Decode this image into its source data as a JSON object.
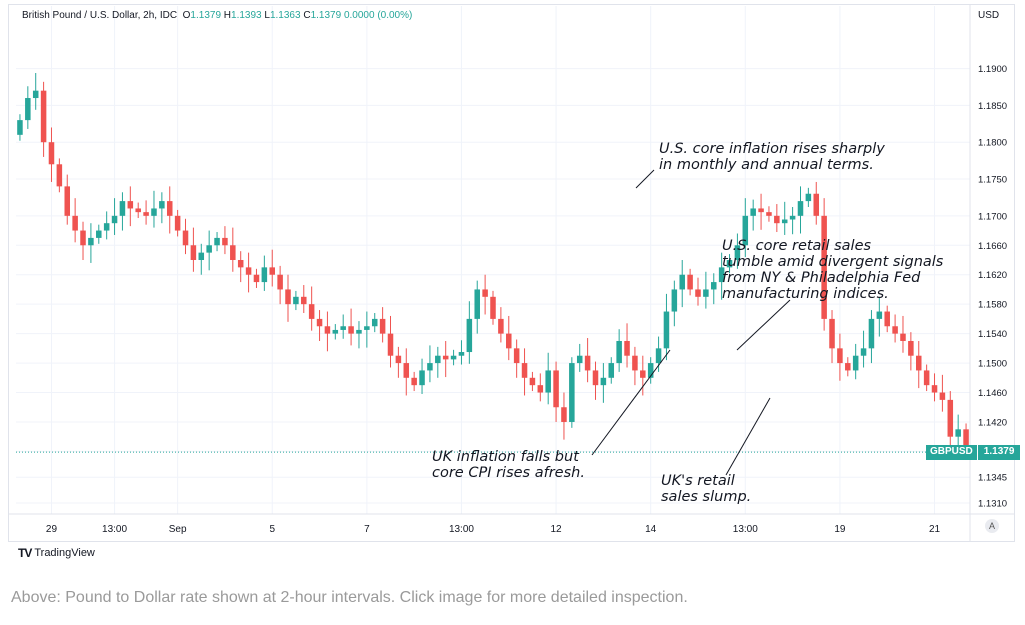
{
  "header": {
    "symbol": "British Pound / U.S. Dollar, 2h, IDC",
    "open_label": "O",
    "open": "1.1379",
    "high_label": "H",
    "high": "1.1393",
    "low_label": "L",
    "low": "1.1363",
    "close_label": "C",
    "close": "1.1379",
    "change": "0.0000 (0.00%)"
  },
  "currency": "USD",
  "price_tag": {
    "symbol": "GBPUSD",
    "value": "1.1379"
  },
  "auto_button": "A",
  "brand": "TradingView",
  "caption": "Above: Pound to Dollar rate shown at 2-hour intervals. Click image for more detailed inspection.",
  "annotations": [
    "U.S. core inflation rises sharply\nin monthly and annual terms.",
    "U.S. core retail sales\ntumble amid divergent signals\nfrom NY & Philadelphia Fed\nmanufacturing indices.",
    "UK inflation falls but\ncore CPI rises afresh.",
    "UK's retail\nsales slump."
  ],
  "colors": {
    "up": "#26a69a",
    "down": "#ef5350",
    "grid": "#f0f3fa",
    "axis_text": "#131722"
  },
  "chart_data": {
    "type": "candlestick",
    "ylim": [
      1.1295,
      1.1985
    ],
    "yticks": [
      1.131,
      1.1345,
      1.138,
      1.142,
      1.146,
      1.15,
      1.154,
      1.158,
      1.162,
      1.166,
      1.17,
      1.175,
      1.18,
      1.185,
      1.19
    ],
    "ytick_labels": [
      "1.1310",
      "1.1345",
      "1.1380",
      "1.1420",
      "1.1460",
      "1.1500",
      "1.1540",
      "1.1580",
      "1.1620",
      "1.1660",
      "1.1700",
      "1.1750",
      "1.1800",
      "1.1850",
      "1.1900"
    ],
    "xticks": [
      4,
      12,
      20,
      32,
      44,
      56,
      68,
      80,
      92,
      104,
      116
    ],
    "xtick_labels": [
      "29",
      "13:00",
      "Sep",
      "5",
      "7",
      "13:00",
      "12",
      "14",
      "13:00",
      "19",
      "21"
    ],
    "x_slots": 121,
    "close_values": [
      1.183,
      1.186,
      1.187,
      1.18,
      1.177,
      1.174,
      1.17,
      1.168,
      1.166,
      1.167,
      1.168,
      1.169,
      1.17,
      1.172,
      1.171,
      1.1705,
      1.17,
      1.171,
      1.172,
      1.17,
      1.168,
      1.166,
      1.164,
      1.165,
      1.166,
      1.167,
      1.166,
      1.164,
      1.163,
      1.162,
      1.161,
      1.163,
      1.162,
      1.16,
      1.158,
      1.159,
      1.158,
      1.156,
      1.155,
      1.154,
      1.1545,
      1.155,
      1.154,
      1.1545,
      1.155,
      1.156,
      1.154,
      1.151,
      1.15,
      1.148,
      1.147,
      1.149,
      1.15,
      1.151,
      1.1505,
      1.151,
      1.1515,
      1.156,
      1.16,
      1.159,
      1.156,
      1.154,
      1.152,
      1.15,
      1.148,
      1.147,
      1.146,
      1.149,
      1.144,
      1.142,
      1.15,
      1.151,
      1.149,
      1.147,
      1.148,
      1.15,
      1.153,
      1.151,
      1.149,
      1.148,
      1.15,
      1.152,
      1.157,
      1.16,
      1.162,
      1.16,
      1.159,
      1.16,
      1.161,
      1.163,
      1.164,
      1.166,
      1.17,
      1.171,
      1.1705,
      1.17,
      1.169,
      1.1695,
      1.17,
      1.172,
      1.173,
      1.17,
      1.156,
      1.152,
      1.15,
      1.149,
      1.151,
      1.152,
      1.156,
      1.157,
      1.155,
      1.154,
      1.153,
      1.151,
      1.149,
      1.147,
      1.146,
      1.145,
      1.14,
      1.141,
      1.1379
    ]
  }
}
